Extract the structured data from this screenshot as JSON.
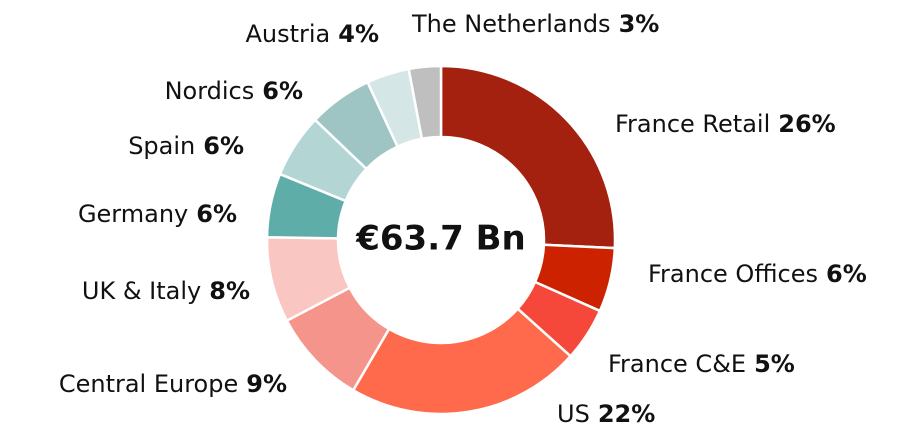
{
  "chart_data": {
    "type": "donut",
    "center_label": "€63.7 Bn",
    "categories": [
      "France Retail",
      "France Offices",
      "France C&E",
      "US",
      "Central Europe",
      "UK & Italy",
      "Germany",
      "Spain",
      "Nordics",
      "Austria",
      "The Netherlands"
    ],
    "values": [
      26,
      6,
      5,
      22,
      9,
      8,
      6,
      6,
      6,
      4,
      3
    ],
    "value_labels": [
      "26%",
      "6%",
      "5%",
      "22%",
      "9%",
      "8%",
      "6%",
      "6%",
      "6%",
      "4%",
      "3%"
    ],
    "colors": [
      "#a4200f",
      "#cc2200",
      "#f5473a",
      "#ff6a4d",
      "#f5948a",
      "#f9c6c2",
      "#5fada9",
      "#b3d6d5",
      "#9ec5c4",
      "#d4e6e6",
      "#bfbfbf"
    ]
  }
}
